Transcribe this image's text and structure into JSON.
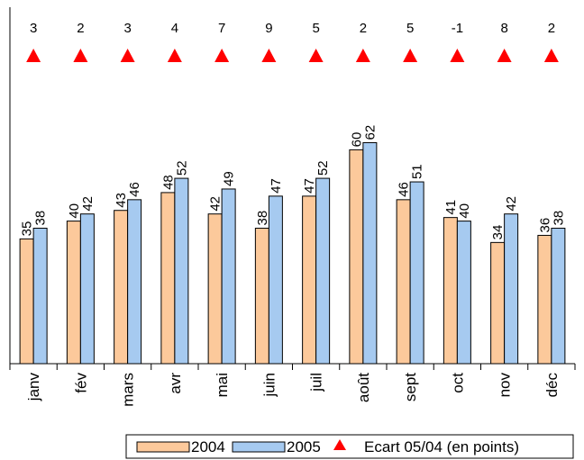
{
  "chart_data": {
    "type": "bar",
    "categories": [
      "janv",
      "fév",
      "mars",
      "avr",
      "mai",
      "juin",
      "juil",
      "août",
      "sept",
      "oct",
      "nov",
      "déc"
    ],
    "series": [
      {
        "name": "2004",
        "values": [
          35,
          40,
          43,
          48,
          42,
          38,
          47,
          60,
          46,
          41,
          34,
          36
        ],
        "color": "#fcc99b"
      },
      {
        "name": "2005",
        "values": [
          38,
          42,
          46,
          52,
          49,
          47,
          52,
          62,
          51,
          40,
          42,
          38
        ],
        "color": "#a6caf0"
      }
    ],
    "ecart": {
      "name": "Ecart 05/04 (en points)",
      "values": [
        3,
        2,
        3,
        4,
        7,
        9,
        5,
        2,
        5,
        -1,
        8,
        2
      ],
      "color": "#ff0000"
    },
    "ylim": [
      0,
      100
    ],
    "grid": false,
    "legend_position": "bottom"
  }
}
